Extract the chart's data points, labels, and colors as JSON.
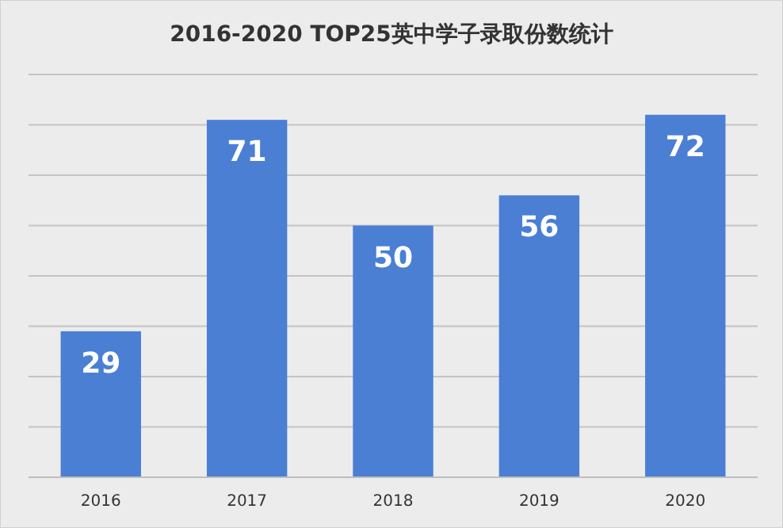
{
  "chart_data": {
    "type": "bar",
    "title": "2016-2020 TOP25英中学子录取份数统计",
    "categories": [
      "2016",
      "2017",
      "2018",
      "2019",
      "2020"
    ],
    "values": [
      29,
      71,
      50,
      56,
      72
    ],
    "color": "#4a7fd4",
    "ylim": [
      0,
      80
    ],
    "yticks": [
      {
        "value": 0,
        "label": null
      },
      {
        "value": 10,
        "label": null
      },
      {
        "value": 20,
        "label": null
      },
      {
        "value": 30,
        "label": null
      },
      {
        "value": 40,
        "label": null
      },
      {
        "value": 50,
        "label": null
      },
      {
        "value": 60,
        "label": null
      },
      {
        "value": 70,
        "label": null
      },
      {
        "value": 80,
        "label": null
      }
    ],
    "tick_labels": "x",
    "grid": "y",
    "data_labels": true
  }
}
